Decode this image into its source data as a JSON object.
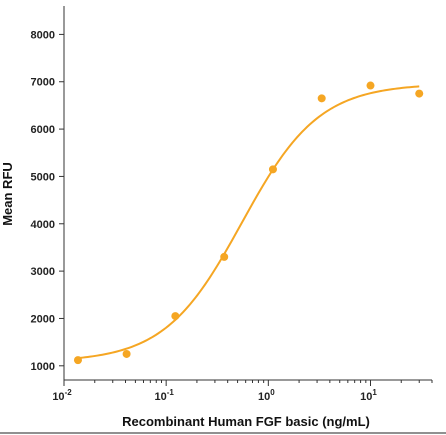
{
  "chart_data": {
    "type": "scatter",
    "xlabel": "Recombinant Human FGF basic (ng/mL)",
    "ylabel": "Mean RFU",
    "x_scale": "log",
    "xlim": [
      0.01,
      40
    ],
    "ylim": [
      700,
      8600
    ],
    "x_ticks": [
      {
        "value": 0.01,
        "base": "10",
        "exp": "-2"
      },
      {
        "value": 0.1,
        "base": "10",
        "exp": "-1"
      },
      {
        "value": 1,
        "base": "10",
        "exp": "0"
      },
      {
        "value": 10,
        "base": "10",
        "exp": "1"
      }
    ],
    "y_ticks": [
      {
        "value": 1000,
        "label": "1000"
      },
      {
        "value": 2000,
        "label": "2000"
      },
      {
        "value": 3000,
        "label": "3000"
      },
      {
        "value": 4000,
        "label": "4000"
      },
      {
        "value": 5000,
        "label": "5000"
      },
      {
        "value": 6000,
        "label": "6000"
      },
      {
        "value": 7000,
        "label": "7000"
      },
      {
        "value": 8000,
        "label": "8000"
      }
    ],
    "grid": false,
    "series": [
      {
        "points": [
          {
            "x": 0.0137,
            "y": 1120
          },
          {
            "x": 0.041,
            "y": 1250
          },
          {
            "x": 0.123,
            "y": 2050
          },
          {
            "x": 0.37,
            "y": 3300
          },
          {
            "x": 1.11,
            "y": 5150
          },
          {
            "x": 3.33,
            "y": 6650
          },
          {
            "x": 10,
            "y": 6920
          },
          {
            "x": 30,
            "y": 6750
          }
        ],
        "fit": {
          "bottom": 1080,
          "top": 6960,
          "ec50": 0.55,
          "hill": 1.15
        },
        "color": "#f5a623"
      }
    ]
  }
}
